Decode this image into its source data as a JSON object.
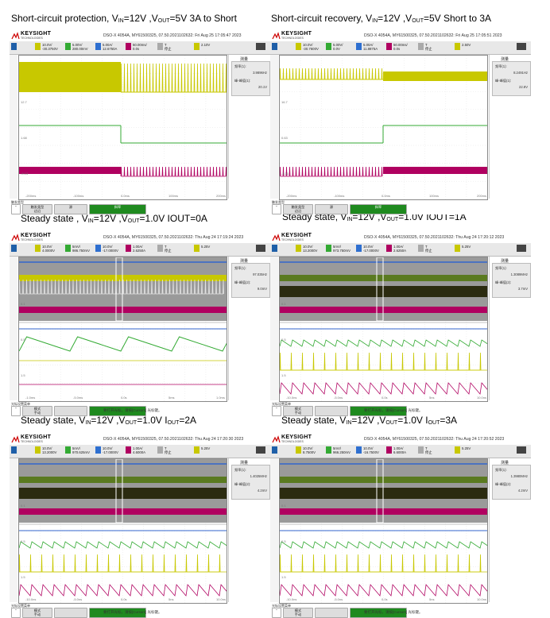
{
  "captions": [
    {
      "pre": "Short-circuit protection, V",
      "s1": "IN",
      "mid": "=12V ,V",
      "s2": "OUT",
      "post": "=5V   3A to Short"
    },
    {
      "pre": "Short-circuit recovery, V",
      "s1": "IN",
      "mid": "=12V ,V",
      "s2": "OUT",
      "post": "=5V  Short to 3A"
    },
    {
      "pre": "Steady state , V",
      "s1": "IN",
      "mid": "=12V ,V",
      "s2": "OUT",
      "post": "=1.0V  IOUT=0A"
    },
    {
      "pre": "Steady state, V",
      "s1": "IN",
      "mid": "=12V ,V",
      "s2": "OUT",
      "post": "=1.0V  IOUT=1A"
    },
    {
      "pre": "Steady state, V",
      "s1": "IN",
      "mid": "=12V ,V",
      "s2": "OUT",
      "post": "=1.0V  I",
      "s3": "OUT",
      "post2": "=2A"
    },
    {
      "pre": "Steady state, V",
      "s1": "IN",
      "mid": "=12V ,V",
      "s2": "OUT",
      "post": "=1.0V  I",
      "s3": "OUT",
      "post2": "=3A"
    }
  ],
  "brand": {
    "name": "KEYSIGHT",
    "sub": "TECHNOLOGIES"
  },
  "colors": {
    "ch1": "#c8c800",
    "ch2": "#33aa33",
    "ch3": "#b00060",
    "ch4": "#3366cc",
    "scopebg": "#ffffff"
  },
  "panels": [
    {
      "status": "DSO-X 4054A, MY61500325, 07.50.2021102632: Fri Aug 25 17:05:47 2023",
      "channels": [
        {
          "v": "10.0V/",
          "o": "-30.3750V"
        },
        {
          "v": "5.00V/",
          "o": "280.00mV"
        },
        {
          "v": "5.00A/",
          "o": "12.6750A"
        },
        {
          "v": "50.00ms/",
          "o": "0.0s"
        }
      ],
      "trig": "2.10V",
      "readout": {
        "title": "测量",
        "l1": "频率(1):",
        "l2": "3.9896Hz",
        "l3": "峰-峰值(1):",
        "l4": "20.1V"
      },
      "bottom": {
        "label": "触发类型",
        "b1": "触发类型\n边沿",
        "b2": "源\n",
        "b3": "斜率\n"
      },
      "message": "",
      "xticks": [
        "-200ms",
        "-100ms",
        "0.0ms",
        "100ms",
        "200ms"
      ],
      "ylabels": [
        "12.7",
        "1.68",
        "-9.13"
      ]
    },
    {
      "status": "DSO-X 4054A, MY61500325, 07.50.2021102632: Fri Aug 25 17:05:51 2023",
      "channels": [
        {
          "v": "10.0V/",
          "o": "-30.7600V"
        },
        {
          "v": "5.00V/",
          "o": "0.0V"
        },
        {
          "v": "5.00A/",
          "o": "11.8875A"
        },
        {
          "v": "50.00ms/",
          "o": "0.0s"
        }
      ],
      "trig": "2.50V",
      "readout": {
        "title": "测量",
        "l1": "频率(1):",
        "l2": "8.2491Hz",
        "l3": "峰-峰值(1):",
        "l4": "22.8V"
      },
      "bottom": {
        "label": "触发类型",
        "b1": "触发类型\n边沿",
        "b2": "源\n",
        "b3": "斜率\n"
      },
      "message": "",
      "xticks": [
        "-200ms",
        "-100ms",
        "0.0ms",
        "100ms",
        "200ms"
      ],
      "ylabels": [
        "16.7",
        "0.63",
        "-3.31"
      ]
    },
    {
      "status": "DSO-X 4054A, MY61500325, 07.50.2021102632: Thu Aug 24 17:19:24 2023",
      "channels": [
        {
          "v": "10.0V/",
          "o": "4.0000V"
        },
        {
          "v": "5mV/",
          "o": "986.750mV"
        },
        {
          "v": "10.0V/",
          "o": "-17.0000V"
        },
        {
          "v": "1.00A/",
          "o": "2.6250A"
        }
      ],
      "trig": "5.25V",
      "readout": {
        "title": "测量",
        "l1": "频率(1):",
        "l2": "97.035Hz",
        "l3": "峰-峰值(2):",
        "l4": "9.0mV"
      },
      "bottom": {
        "label": "光标设置菜单",
        "b1": "模式\n手动",
        "b2": "",
        "b3": ""
      },
      "message": "要打开光标，请按[Cursors] 光标键。",
      "xticks": [
        "-1.0ms",
        "-5.0ms",
        "0.0s",
        "5ms",
        "1.0ms"
      ],
      "ylabels": [
        "0.1",
        "0.5",
        "1.5"
      ]
    },
    {
      "status": "DSO-X 4054A, MY61500325, 07.50.2021102632: Thu Aug 24 17:20:12 2023",
      "channels": [
        {
          "v": "10.0V/",
          "o": "13.2000V"
        },
        {
          "v": "5mV/",
          "o": "973.750mV"
        },
        {
          "v": "10.0V/",
          "o": "-17.0000V"
        },
        {
          "v": "1.00A/",
          "o": "2.6250A"
        }
      ],
      "trig": "5.25V",
      "readout": {
        "title": "测量",
        "l1": "频率(1):",
        "l2": "1.3089MHz",
        "l3": "峰-峰值(2):",
        "l4": "3.7mV"
      },
      "bottom": {
        "label": "光标设置菜单",
        "b1": "模式\n手动",
        "b2": "",
        "b3": ""
      },
      "message": "要打开光标，请按[Cursors] 光标键。",
      "xticks": [
        "-10.0ns",
        "-5.0ns",
        "0.0s",
        "5ns",
        "10.0ns"
      ],
      "ylabels": [
        "0.1",
        "0.5",
        "1.5"
      ]
    },
    {
      "status": "DSO-X 4054A, MY61500325, 07.50.2021102632: Thu Aug 24 17:20:30 2023",
      "channels": [
        {
          "v": "10.0V/",
          "o": "13.2000V"
        },
        {
          "v": "5mV/",
          "o": "970.625mV"
        },
        {
          "v": "10.0V/",
          "o": "-17.0000V"
        },
        {
          "v": "1.00A/",
          "o": "4.6000A"
        }
      ],
      "trig": "5.25V",
      "readout": {
        "title": "测量",
        "l1": "频率(1):",
        "l2": "1.4025MHz",
        "l3": "峰-峰值(2):",
        "l4": "4.2mV"
      },
      "bottom": {
        "label": "光标设置菜单",
        "b1": "模式\n手动",
        "b2": "",
        "b3": ""
      },
      "message": "要打开光标，请按[Cursors] 光标键。",
      "xticks": [
        "-10.0ns",
        "-5.0ns",
        "0.0s",
        "5ns",
        "10.0ns"
      ],
      "ylabels": [
        "0.1",
        "0.5",
        "1.5"
      ]
    },
    {
      "status": "DSO-X 4054A, MY61500325, 07.50.2021102632: Thu Aug 24 17:20:52 2023",
      "channels": [
        {
          "v": "10.0V/",
          "o": "8.7500V"
        },
        {
          "v": "5mV/",
          "o": "966.250mV"
        },
        {
          "v": "10.0V/",
          "o": "-16.7500V"
        },
        {
          "v": "1.00A/",
          "o": "6.6000A"
        }
      ],
      "trig": "5.25V",
      "readout": {
        "title": "测量",
        "l1": "频率(1):",
        "l2": "1.3980MHz",
        "l3": "峰-峰值(2):",
        "l4": "4.2mV"
      },
      "bottom": {
        "label": "光标设置菜单",
        "b1": "模式\n手动",
        "b2": "",
        "b3": ""
      },
      "message": "要打开光标，请按[Cursors] 光标键。",
      "xticks": [
        "-10.0ns",
        "-5.0ns",
        "0.0s",
        "5ns",
        "10.0ns"
      ],
      "ylabels": [
        "0.1",
        "0.5",
        "1.5"
      ]
    }
  ]
}
